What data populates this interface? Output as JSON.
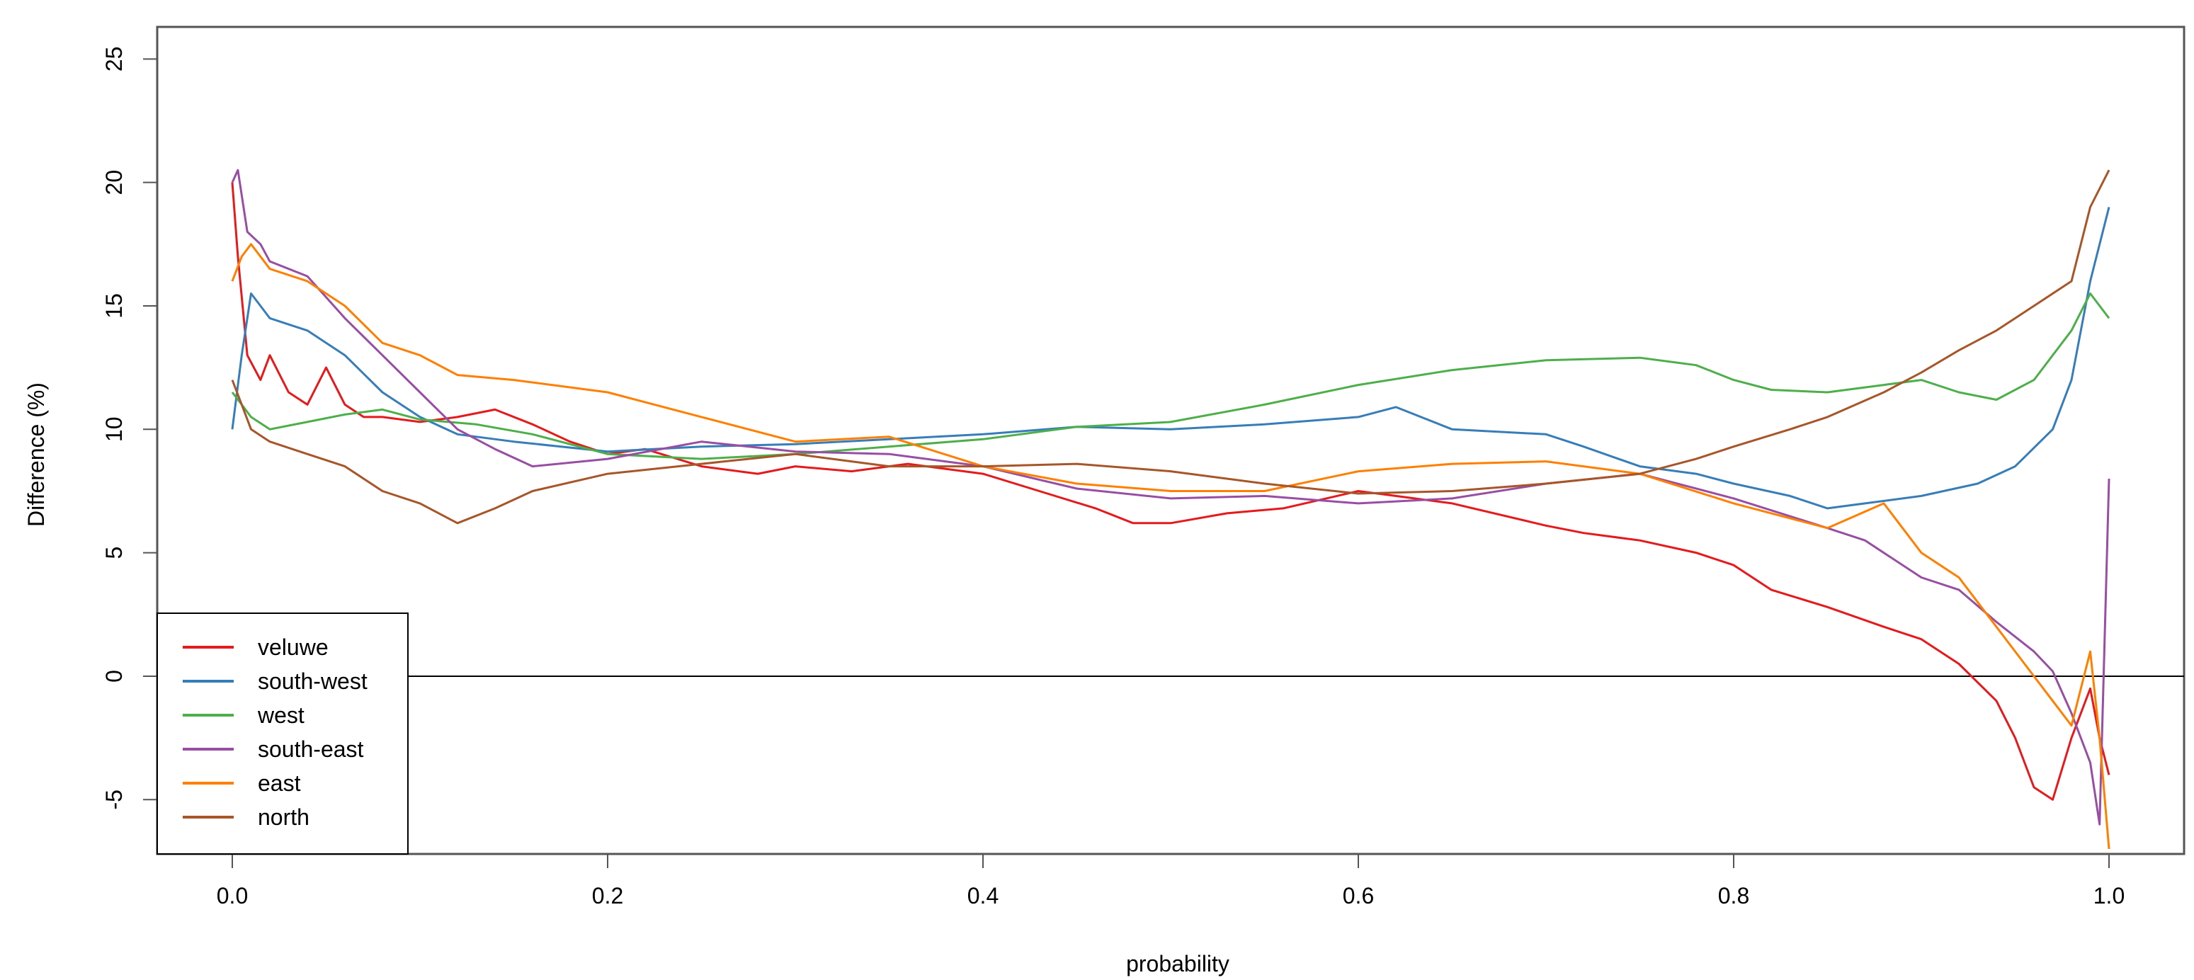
{
  "chart_data": {
    "type": "line",
    "title": "",
    "xlabel": "probability",
    "ylabel": "Difference (%)",
    "xlim": [
      -0.04,
      1.04
    ],
    "ylim": [
      -7.2,
      26.3
    ],
    "xticks": [
      0.0,
      0.2,
      0.4,
      0.6,
      0.8,
      1.0
    ],
    "xtick_labels": [
      "0.0",
      "0.2",
      "0.4",
      "0.6",
      "0.8",
      "1.0"
    ],
    "yticks": [
      -5,
      0,
      5,
      10,
      15,
      20,
      25
    ],
    "ytick_labels": [
      "-5",
      "0",
      "5",
      "10",
      "15",
      "20",
      "25"
    ],
    "hline": 0,
    "grid": false,
    "legend_position": "bottom-left",
    "series": [
      {
        "name": "veluwe",
        "color": "#e41a1c",
        "x": [
          0,
          0.003,
          0.008,
          0.015,
          0.02,
          0.03,
          0.04,
          0.05,
          0.06,
          0.07,
          0.08,
          0.1,
          0.12,
          0.14,
          0.16,
          0.18,
          0.2,
          0.22,
          0.25,
          0.28,
          0.3,
          0.33,
          0.36,
          0.4,
          0.43,
          0.46,
          0.48,
          0.5,
          0.53,
          0.56,
          0.6,
          0.62,
          0.65,
          0.7,
          0.72,
          0.75,
          0.78,
          0.8,
          0.82,
          0.85,
          0.88,
          0.9,
          0.92,
          0.94,
          0.95,
          0.96,
          0.97,
          0.98,
          0.99,
          0.995,
          1.0
        ],
        "y": [
          20,
          17,
          13,
          12,
          13,
          11.5,
          11,
          12.5,
          11,
          10.5,
          10.5,
          10.3,
          10.5,
          10.8,
          10.2,
          9.5,
          9.0,
          9.2,
          8.5,
          8.2,
          8.5,
          8.3,
          8.6,
          8.2,
          7.5,
          6.8,
          6.2,
          6.2,
          6.6,
          6.8,
          7.5,
          7.3,
          7.0,
          6.1,
          5.8,
          5.5,
          5.0,
          4.5,
          3.5,
          2.8,
          2.0,
          1.5,
          0.5,
          -1.0,
          -2.5,
          -4.5,
          -5.0,
          -2.5,
          -0.5,
          -2.5,
          -4.0
        ]
      },
      {
        "name": "south-west",
        "color": "#377eb8",
        "x": [
          0,
          0.005,
          0.01,
          0.02,
          0.04,
          0.06,
          0.08,
          0.1,
          0.12,
          0.15,
          0.2,
          0.25,
          0.3,
          0.35,
          0.4,
          0.45,
          0.5,
          0.55,
          0.6,
          0.62,
          0.65,
          0.7,
          0.72,
          0.75,
          0.78,
          0.8,
          0.83,
          0.85,
          0.87,
          0.9,
          0.93,
          0.95,
          0.97,
          0.98,
          0.99,
          1.0
        ],
        "y": [
          10,
          13,
          15.5,
          14.5,
          14.0,
          13.0,
          11.5,
          10.5,
          9.8,
          9.5,
          9.1,
          9.3,
          9.4,
          9.6,
          9.8,
          10.1,
          10.0,
          10.2,
          10.5,
          10.9,
          10.0,
          9.8,
          9.3,
          8.5,
          8.2,
          7.8,
          7.3,
          6.8,
          7.0,
          7.3,
          7.8,
          8.5,
          10.0,
          12.0,
          16.0,
          19.0
        ]
      },
      {
        "name": "west",
        "color": "#4daf4a",
        "x": [
          0,
          0.005,
          0.01,
          0.02,
          0.04,
          0.06,
          0.08,
          0.1,
          0.13,
          0.16,
          0.2,
          0.25,
          0.3,
          0.35,
          0.4,
          0.45,
          0.5,
          0.55,
          0.6,
          0.65,
          0.7,
          0.75,
          0.78,
          0.8,
          0.82,
          0.85,
          0.88,
          0.9,
          0.92,
          0.94,
          0.96,
          0.98,
          0.99,
          1.0
        ],
        "y": [
          11.5,
          11.0,
          10.5,
          10.0,
          10.3,
          10.6,
          10.8,
          10.4,
          10.2,
          9.8,
          9.0,
          8.8,
          9.0,
          9.3,
          9.6,
          10.1,
          10.3,
          11.0,
          11.8,
          12.4,
          12.8,
          12.9,
          12.6,
          12.0,
          11.6,
          11.5,
          11.8,
          12.0,
          11.5,
          11.2,
          12.0,
          14.0,
          15.5,
          14.5
        ]
      },
      {
        "name": "south-east",
        "color": "#984ea3",
        "x": [
          0,
          0.003,
          0.008,
          0.015,
          0.02,
          0.04,
          0.06,
          0.08,
          0.1,
          0.12,
          0.14,
          0.16,
          0.2,
          0.25,
          0.3,
          0.35,
          0.4,
          0.45,
          0.5,
          0.55,
          0.6,
          0.65,
          0.7,
          0.75,
          0.8,
          0.85,
          0.87,
          0.9,
          0.92,
          0.94,
          0.96,
          0.97,
          0.98,
          0.99,
          0.995,
          1.0
        ],
        "y": [
          20,
          20.5,
          18,
          17.5,
          16.8,
          16.2,
          14.5,
          13.0,
          11.5,
          10.0,
          9.2,
          8.5,
          8.8,
          9.5,
          9.1,
          9.0,
          8.5,
          7.6,
          7.2,
          7.3,
          7.0,
          7.2,
          7.8,
          8.2,
          7.2,
          6.0,
          5.5,
          4.0,
          3.5,
          2.2,
          1.0,
          0.2,
          -1.5,
          -3.5,
          -6.0,
          8.0
        ]
      },
      {
        "name": "east",
        "color": "#ff7f00",
        "x": [
          0,
          0.005,
          0.01,
          0.02,
          0.04,
          0.06,
          0.08,
          0.1,
          0.12,
          0.15,
          0.2,
          0.25,
          0.3,
          0.35,
          0.4,
          0.45,
          0.5,
          0.55,
          0.6,
          0.65,
          0.7,
          0.75,
          0.8,
          0.85,
          0.88,
          0.9,
          0.92,
          0.94,
          0.96,
          0.97,
          0.98,
          0.99,
          0.995,
          1.0
        ],
        "y": [
          16,
          17,
          17.5,
          16.5,
          16.0,
          15.0,
          13.5,
          13.0,
          12.2,
          12.0,
          11.5,
          10.5,
          9.5,
          9.7,
          8.5,
          7.8,
          7.5,
          7.5,
          8.3,
          8.6,
          8.7,
          8.2,
          7.0,
          6.0,
          7.0,
          5.0,
          4.0,
          2.0,
          0.0,
          -1.0,
          -2.0,
          1.0,
          -2.5,
          -7.0
        ]
      },
      {
        "name": "north",
        "color": "#a65628",
        "x": [
          0,
          0.005,
          0.01,
          0.02,
          0.04,
          0.06,
          0.08,
          0.1,
          0.12,
          0.14,
          0.16,
          0.2,
          0.25,
          0.3,
          0.35,
          0.4,
          0.45,
          0.5,
          0.55,
          0.6,
          0.65,
          0.7,
          0.75,
          0.78,
          0.8,
          0.83,
          0.85,
          0.88,
          0.9,
          0.92,
          0.94,
          0.96,
          0.98,
          0.99,
          1.0
        ],
        "y": [
          12.0,
          11.0,
          10.0,
          9.5,
          9.0,
          8.5,
          7.5,
          7.0,
          6.2,
          6.8,
          7.5,
          8.2,
          8.6,
          9.0,
          8.5,
          8.5,
          8.6,
          8.3,
          7.8,
          7.4,
          7.5,
          7.8,
          8.2,
          8.8,
          9.3,
          10.0,
          10.5,
          11.5,
          12.3,
          13.2,
          14.0,
          15.0,
          16.0,
          19.0,
          20.5
        ]
      }
    ]
  }
}
